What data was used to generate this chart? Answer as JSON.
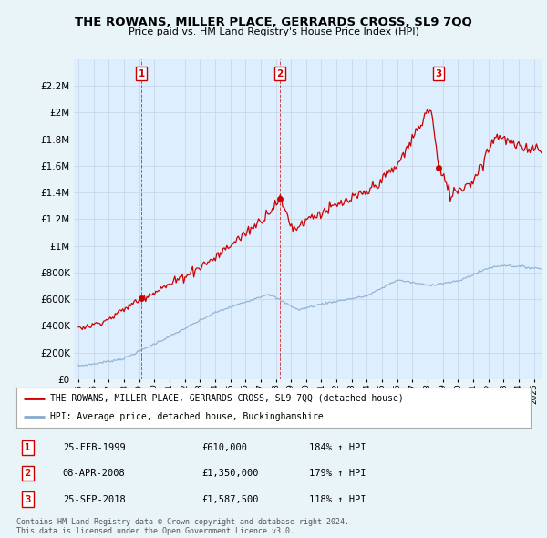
{
  "title_line1": "THE ROWANS, MILLER PLACE, GERRARDS CROSS, SL9 7QQ",
  "title_line2": "Price paid vs. HM Land Registry's House Price Index (HPI)",
  "bg_color": "#e8f4f8",
  "plot_bg_color": "#ddeeff",
  "grid_color": "#c8d8e8",
  "sale_line_color": "#cc0000",
  "hpi_line_color": "#88aacc",
  "sale_label": "THE ROWANS, MILLER PLACE, GERRARDS CROSS, SL9 7QQ (detached house)",
  "hpi_label": "HPI: Average price, detached house, Buckinghamshire",
  "transactions": [
    {
      "num": 1,
      "date": "25-FEB-1999",
      "price": 610000,
      "pct": "184%",
      "x": 1999.15
    },
    {
      "num": 2,
      "date": "08-APR-2008",
      "price": 1350000,
      "pct": "179%",
      "x": 2008.27
    },
    {
      "num": 3,
      "date": "25-SEP-2018",
      "price": 1587500,
      "pct": "118%",
      "x": 2018.73
    }
  ],
  "footer": "Contains HM Land Registry data © Crown copyright and database right 2024.\nThis data is licensed under the Open Government Licence v3.0.",
  "ylim": [
    0,
    2400000
  ],
  "yticks": [
    0,
    200000,
    400000,
    600000,
    800000,
    1000000,
    1200000,
    1400000,
    1600000,
    1800000,
    2000000,
    2200000
  ],
  "xlim_start": 1994.7,
  "xlim_end": 2025.5
}
